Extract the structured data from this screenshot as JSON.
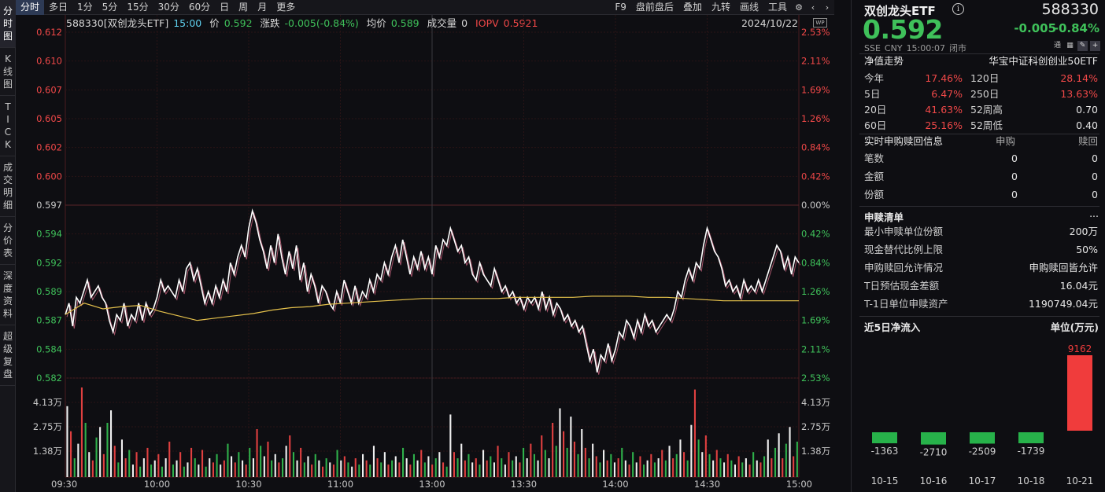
{
  "toolbar": {
    "tabs": [
      "分时",
      "多日",
      "1分",
      "5分",
      "15分",
      "30分",
      "60分",
      "日",
      "周",
      "月",
      "更多"
    ],
    "right_items": [
      "F9",
      "盘前盘后",
      "叠加",
      "九转",
      "画线",
      "工具"
    ]
  },
  "side_tabs": [
    "分时图",
    "K线图",
    "TICK",
    "成交明细",
    "分价表",
    "深度资料",
    "超级复盘"
  ],
  "quote": {
    "code_name": "588330[双创龙头ETF]",
    "time": "15:00",
    "price_label": "价",
    "price": "0.592",
    "change_label": "涨跌",
    "change": "-0.005(-0.84%)",
    "avg_label": "均价",
    "avg": "0.589",
    "volume_label": "成交量",
    "volume": "0",
    "iopv_label": "IOPV",
    "iopv": "0.5921",
    "date": "2024/10/22"
  },
  "chart_data": [
    {
      "type": "line",
      "x_ticks": [
        "09:30",
        "10:00",
        "10:30",
        "11:00",
        "13:00",
        "13:30",
        "14:00",
        "14:30",
        "15:00"
      ],
      "y_left_ticks": [
        "0.612",
        "0.610",
        "0.607",
        "0.605",
        "0.602",
        "0.600",
        "0.597",
        "0.594",
        "0.592",
        "0.589",
        "0.587",
        "0.584",
        "0.582"
      ],
      "y_right_ticks": [
        "2.53%",
        "2.11%",
        "1.69%",
        "1.26%",
        "0.84%",
        "0.42%",
        "0.00%",
        "0.42%",
        "0.84%",
        "1.26%",
        "1.69%",
        "2.11%",
        "2.53%"
      ],
      "ylim": [
        0.582,
        0.612
      ],
      "prev_close": 0.597,
      "series": [
        {
          "values": [
            0.5875,
            0.5885,
            0.5865,
            0.589,
            0.5885,
            0.5895,
            0.5905,
            0.589,
            0.5895,
            0.59,
            0.589,
            0.5885,
            0.587,
            0.586,
            0.5875,
            0.587,
            0.5885,
            0.5865,
            0.5875,
            0.587,
            0.5885,
            0.587,
            0.5885,
            0.5875,
            0.588,
            0.589,
            0.5905,
            0.5895,
            0.59,
            0.5895,
            0.589,
            0.5905,
            0.5895,
            0.5915,
            0.592,
            0.5905,
            0.5915,
            0.59,
            0.5885,
            0.5895,
            0.5885,
            0.59,
            0.589,
            0.5905,
            0.5895,
            0.592,
            0.591,
            0.5925,
            0.5935,
            0.5925,
            0.595,
            0.5965,
            0.5955,
            0.594,
            0.593,
            0.5915,
            0.5935,
            0.592,
            0.5945,
            0.5925,
            0.591,
            0.593,
            0.5915,
            0.5935,
            0.5905,
            0.592,
            0.5895,
            0.591,
            0.59,
            0.5885,
            0.59,
            0.5895,
            0.5885,
            0.588,
            0.5895,
            0.5885,
            0.5905,
            0.5895,
            0.5885,
            0.59,
            0.5885,
            0.5895,
            0.589,
            0.5905,
            0.5895,
            0.591,
            0.5905,
            0.592,
            0.591,
            0.5925,
            0.5935,
            0.592,
            0.594,
            0.5925,
            0.591,
            0.5925,
            0.5915,
            0.593,
            0.5915,
            0.5925,
            0.591,
            0.5935,
            0.5925,
            0.594,
            0.5935,
            0.595,
            0.594,
            0.593,
            0.5935,
            0.592,
            0.5925,
            0.591,
            0.5905,
            0.592,
            0.591,
            0.5905,
            0.59,
            0.5915,
            0.5905,
            0.5895,
            0.59,
            0.589,
            0.5895,
            0.5885,
            0.589,
            0.588,
            0.589,
            0.5885,
            0.589,
            0.588,
            0.5895,
            0.588,
            0.589,
            0.5875,
            0.5885,
            0.588,
            0.587,
            0.5875,
            0.5865,
            0.587,
            0.586,
            0.5865,
            0.585,
            0.5835,
            0.5845,
            0.5825,
            0.584,
            0.5835,
            0.585,
            0.5835,
            0.5845,
            0.586,
            0.5855,
            0.587,
            0.5865,
            0.5855,
            0.587,
            0.586,
            0.5875,
            0.5865,
            0.587,
            0.586,
            0.5865,
            0.587,
            0.5875,
            0.587,
            0.588,
            0.5895,
            0.589,
            0.5905,
            0.5915,
            0.5905,
            0.592,
            0.5915,
            0.5935,
            0.595,
            0.594,
            0.593,
            0.5925,
            0.5915,
            0.59,
            0.5905,
            0.5895,
            0.59,
            0.589,
            0.5905,
            0.5895,
            0.59,
            0.5895,
            0.5905,
            0.5895,
            0.5905,
            0.5915,
            0.5925,
            0.5935,
            0.593,
            0.5915,
            0.5925,
            0.591,
            0.5925,
            0.592
          ]
        },
        {
          "values": [
            0.5875,
            0.5885,
            0.588,
            0.5882,
            0.5883,
            0.5878,
            0.5874,
            0.587,
            0.5872,
            0.5874,
            0.5876,
            0.5879,
            0.5881,
            0.5882,
            0.5884,
            0.5885,
            0.5886,
            0.5887,
            0.5888,
            0.5889,
            0.5889,
            0.5889,
            0.5889,
            0.5889,
            0.589,
            0.589,
            0.589,
            0.589,
            0.5891,
            0.5891,
            0.5891,
            0.589,
            0.589,
            0.5889,
            0.5888,
            0.5887,
            0.5887,
            0.5887,
            0.5887,
            0.5887
          ]
        }
      ]
    },
    {
      "type": "bar",
      "y_ticks": [
        "4.13万",
        "2.75万",
        "1.38万"
      ],
      "values": [
        3.4,
        2.2,
        0.9,
        1.6,
        4.3,
        2.6,
        1.2,
        0.8,
        1.9,
        2.4,
        1.1,
        2.6,
        3.2,
        1.5,
        0.7,
        1.8,
        0.9,
        1.3,
        0.6,
        1.2,
        0.5,
        0.9,
        1.4,
        0.6,
        0.8,
        1.1,
        0.5,
        0.9,
        1.7,
        0.6,
        0.8,
        1.2,
        0.5,
        0.7,
        1.4,
        0.9,
        0.6,
        1.3,
        0.5,
        0.9,
        0.7,
        1.1,
        0.6,
        0.8,
        1.6,
        1.0,
        0.7,
        1.2,
        0.8,
        0.6,
        1.4,
        0.9,
        2.3,
        1.5,
        1.0,
        1.7,
        0.8,
        1.1,
        0.7,
        0.9,
        1.5,
        2.0,
        1.2,
        0.8,
        1.4,
        0.7,
        1.0,
        0.6,
        1.1,
        0.8,
        0.5,
        0.9,
        0.7,
        0.6,
        1.3,
        0.8,
        1.0,
        0.7,
        0.5,
        0.9,
        0.6,
        1.1,
        0.8,
        0.6,
        1.5,
        0.9,
        0.7,
        1.2,
        0.6,
        0.8,
        1.0,
        0.7,
        1.4,
        0.9,
        0.6,
        1.1,
        0.8,
        1.3,
        0.7,
        1.0,
        0.6,
        0.9,
        1.2,
        0.7,
        0.5,
        3.0,
        1.2,
        0.9,
        1.6,
        0.8,
        1.1,
        0.7,
        0.9,
        0.6,
        1.3,
        0.8,
        1.0,
        0.7,
        1.5,
        0.9,
        0.6,
        1.2,
        0.8,
        1.0,
        0.7,
        1.4,
        0.9,
        1.6,
        1.1,
        0.8,
        2.0,
        1.3,
        0.9,
        2.6,
        1.5,
        3.3,
        2.2,
        1.4,
        2.9,
        1.7,
        1.1,
        2.3,
        1.4,
        0.9,
        1.6,
        1.0,
        0.7,
        1.3,
        0.8,
        1.1,
        0.7,
        0.9,
        1.4,
        0.8,
        0.6,
        1.2,
        0.7,
        1.0,
        0.6,
        0.8,
        1.1,
        0.7,
        0.9,
        1.3,
        0.8,
        1.5,
        0.9,
        1.1,
        1.8,
        1.2,
        0.8,
        2.5,
        4.2,
        1.8,
        1.2,
        2.0,
        1.1,
        0.8,
        1.3,
        0.9,
        0.7,
        1.1,
        0.8,
        0.6,
        1.0,
        0.7,
        0.9,
        0.6,
        1.2,
        0.8,
        0.7,
        1.0,
        1.8,
        0.9,
        1.4,
        2.1,
        0.9,
        1.6,
        2.4,
        1.0,
        1.7
      ],
      "colors_pattern": "white/red/green per tick"
    }
  ],
  "panel": {
    "name": "双创龙头ETF",
    "code": "588330",
    "price": "0.592",
    "change": "-0.005",
    "change_pct": "-0.84%",
    "meta": [
      "SSE",
      "CNY",
      "15:00:07",
      "闭市"
    ],
    "icon_tong": "通",
    "nav": {
      "title": "净值走势",
      "index": "华宝中证科创创业50ETF",
      "rows": [
        {
          "l1": "今年",
          "v1": "17.46%",
          "l2": "120日",
          "v2": "28.14%"
        },
        {
          "l1": "5日",
          "v1": "6.47%",
          "l2": "250日",
          "v2": "13.63%"
        },
        {
          "l1": "20日",
          "v1": "41.63%",
          "l2": "52周高",
          "v2": "0.70"
        },
        {
          "l1": "60日",
          "v1": "25.16%",
          "l2": "52周低",
          "v2": "0.40"
        }
      ]
    },
    "realtime": {
      "title": "实时申购赎回信息",
      "col1": "申购",
      "col2": "赎回",
      "rows": [
        {
          "label": "笔数",
          "v1": "0",
          "v2": "0"
        },
        {
          "label": "金额",
          "v1": "0",
          "v2": "0"
        },
        {
          "label": "份额",
          "v1": "0",
          "v2": "0"
        }
      ]
    },
    "redeem_list": {
      "title": "申赎清单",
      "more": "...",
      "rows": [
        {
          "label": "最小申赎单位份额",
          "value": "200万"
        },
        {
          "label": "现金替代比例上限",
          "value": "50%"
        },
        {
          "label": "申购赎回允许情况",
          "value": "申购赎回皆允许"
        },
        {
          "label": "T日预估现金差额",
          "value": "16.04元"
        },
        {
          "label": "T-1日单位申赎资产",
          "value": "1190749.04元"
        }
      ]
    },
    "flow": {
      "title": "近5日净流入",
      "unit": "单位(万元)",
      "chart": {
        "type": "bar",
        "categories": [
          "10-15",
          "10-16",
          "10-17",
          "10-18",
          "10-21"
        ],
        "values": [
          -1363,
          -2710,
          -2509,
          -1739,
          9162
        ],
        "value_labels": [
          "-1363",
          "-2710",
          "-2509",
          "-1739",
          "9162"
        ]
      }
    }
  },
  "colors": {
    "up": "#f04848",
    "down": "#3fc15a",
    "price_line": "#ffffff",
    "avg_line": "#e6c24c",
    "grid": "#2a1416"
  }
}
